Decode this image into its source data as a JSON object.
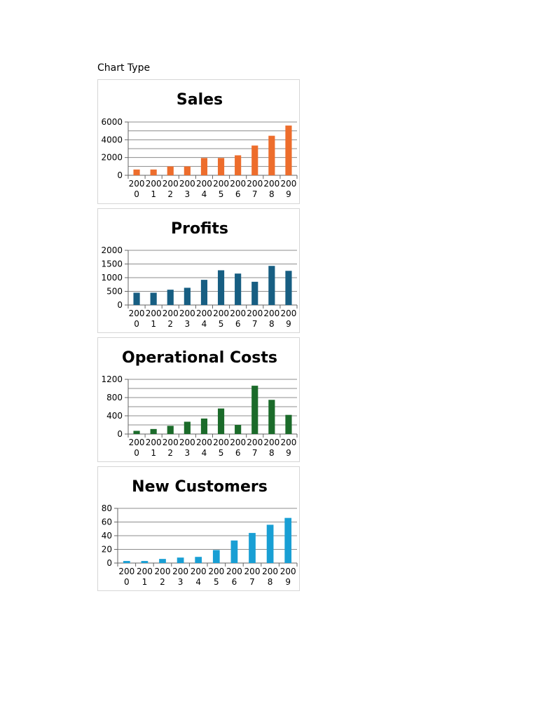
{
  "page": {
    "heading": "Chart Type"
  },
  "chart_data": [
    {
      "type": "bar",
      "title": "Sales",
      "categories": [
        "2000",
        "2001",
        "2002",
        "2003",
        "2004",
        "2005",
        "2006",
        "2007",
        "2008",
        "2009"
      ],
      "values": [
        650,
        650,
        1000,
        1000,
        1950,
        1950,
        2250,
        3350,
        4450,
        5600
      ],
      "ylim": [
        0,
        6000
      ],
      "yticks": [
        0,
        2000,
        4000,
        6000
      ],
      "minor_step": 1000,
      "grid": true,
      "color": "#ed6d2c"
    },
    {
      "type": "bar",
      "title": "Profits",
      "categories": [
        "2000",
        "2001",
        "2002",
        "2003",
        "2004",
        "2005",
        "2006",
        "2007",
        "2008",
        "2009"
      ],
      "values": [
        450,
        450,
        560,
        630,
        920,
        1270,
        1150,
        850,
        1430,
        1250
      ],
      "ylim": [
        0,
        2000
      ],
      "yticks": [
        0,
        500,
        1000,
        1500,
        2000
      ],
      "minor_step": 500,
      "grid": true,
      "color": "#175e82"
    },
    {
      "type": "bar",
      "title": "Operational Costs",
      "categories": [
        "2000",
        "2001",
        "2002",
        "2003",
        "2004",
        "2005",
        "2006",
        "2007",
        "2008",
        "2009"
      ],
      "values": [
        70,
        110,
        180,
        270,
        340,
        560,
        200,
        1060,
        750,
        420
      ],
      "ylim": [
        0,
        1200
      ],
      "yticks": [
        0,
        400,
        800,
        1200
      ],
      "minor_step": 200,
      "grid": true,
      "color": "#1b6b2a"
    },
    {
      "type": "bar",
      "title": "New Customers",
      "categories": [
        "2000",
        "2001",
        "2002",
        "2003",
        "2004",
        "2005",
        "2006",
        "2007",
        "2008",
        "2009"
      ],
      "values": [
        3,
        3,
        6,
        8,
        9,
        19,
        33,
        44,
        56,
        66
      ],
      "ylim": [
        0,
        80
      ],
      "yticks": [
        0,
        20,
        40,
        60,
        80
      ],
      "minor_step": 20,
      "grid": true,
      "color": "#199fd4"
    }
  ]
}
